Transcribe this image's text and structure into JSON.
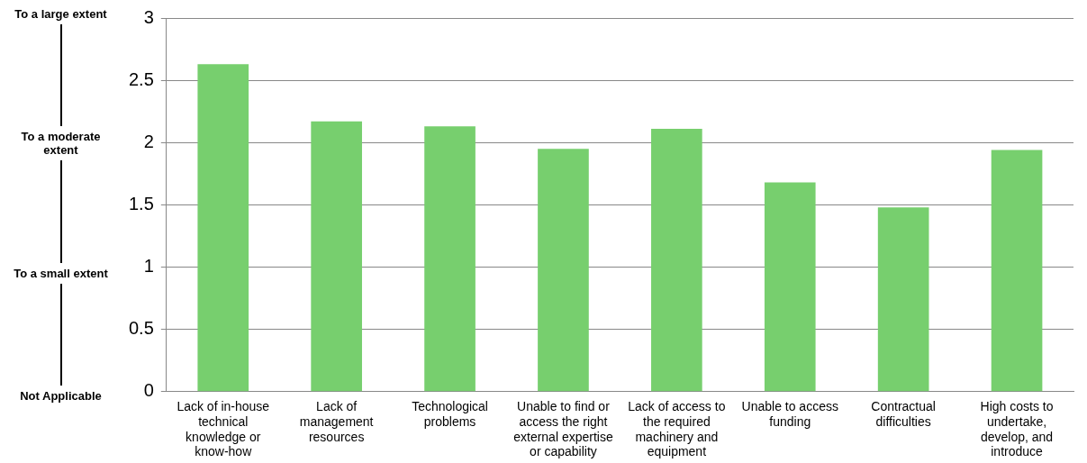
{
  "chart_data": {
    "type": "bar",
    "categories": [
      "Lack of in-house technical knowledge or know-how",
      "Lack of management resources",
      "Technological problems",
      "Unable to find or access the right external expertise or capability",
      "Lack of access to the required machinery and equipment",
      "Unable to access funding",
      "Contractual difficulties",
      "High costs to undertake, develop, and introduce"
    ],
    "values": [
      2.63,
      2.17,
      2.13,
      1.95,
      2.11,
      1.68,
      1.48,
      1.94
    ],
    "color": "#77cf6e",
    "ylim": [
      0,
      3
    ],
    "yticks": [
      0,
      0.5,
      1,
      1.5,
      2,
      2.5,
      3
    ],
    "grid": "y",
    "legend": false,
    "annotations": [
      "To a large extent",
      "To a moderate extent",
      "To a small extent",
      "Not Applicable"
    ]
  }
}
